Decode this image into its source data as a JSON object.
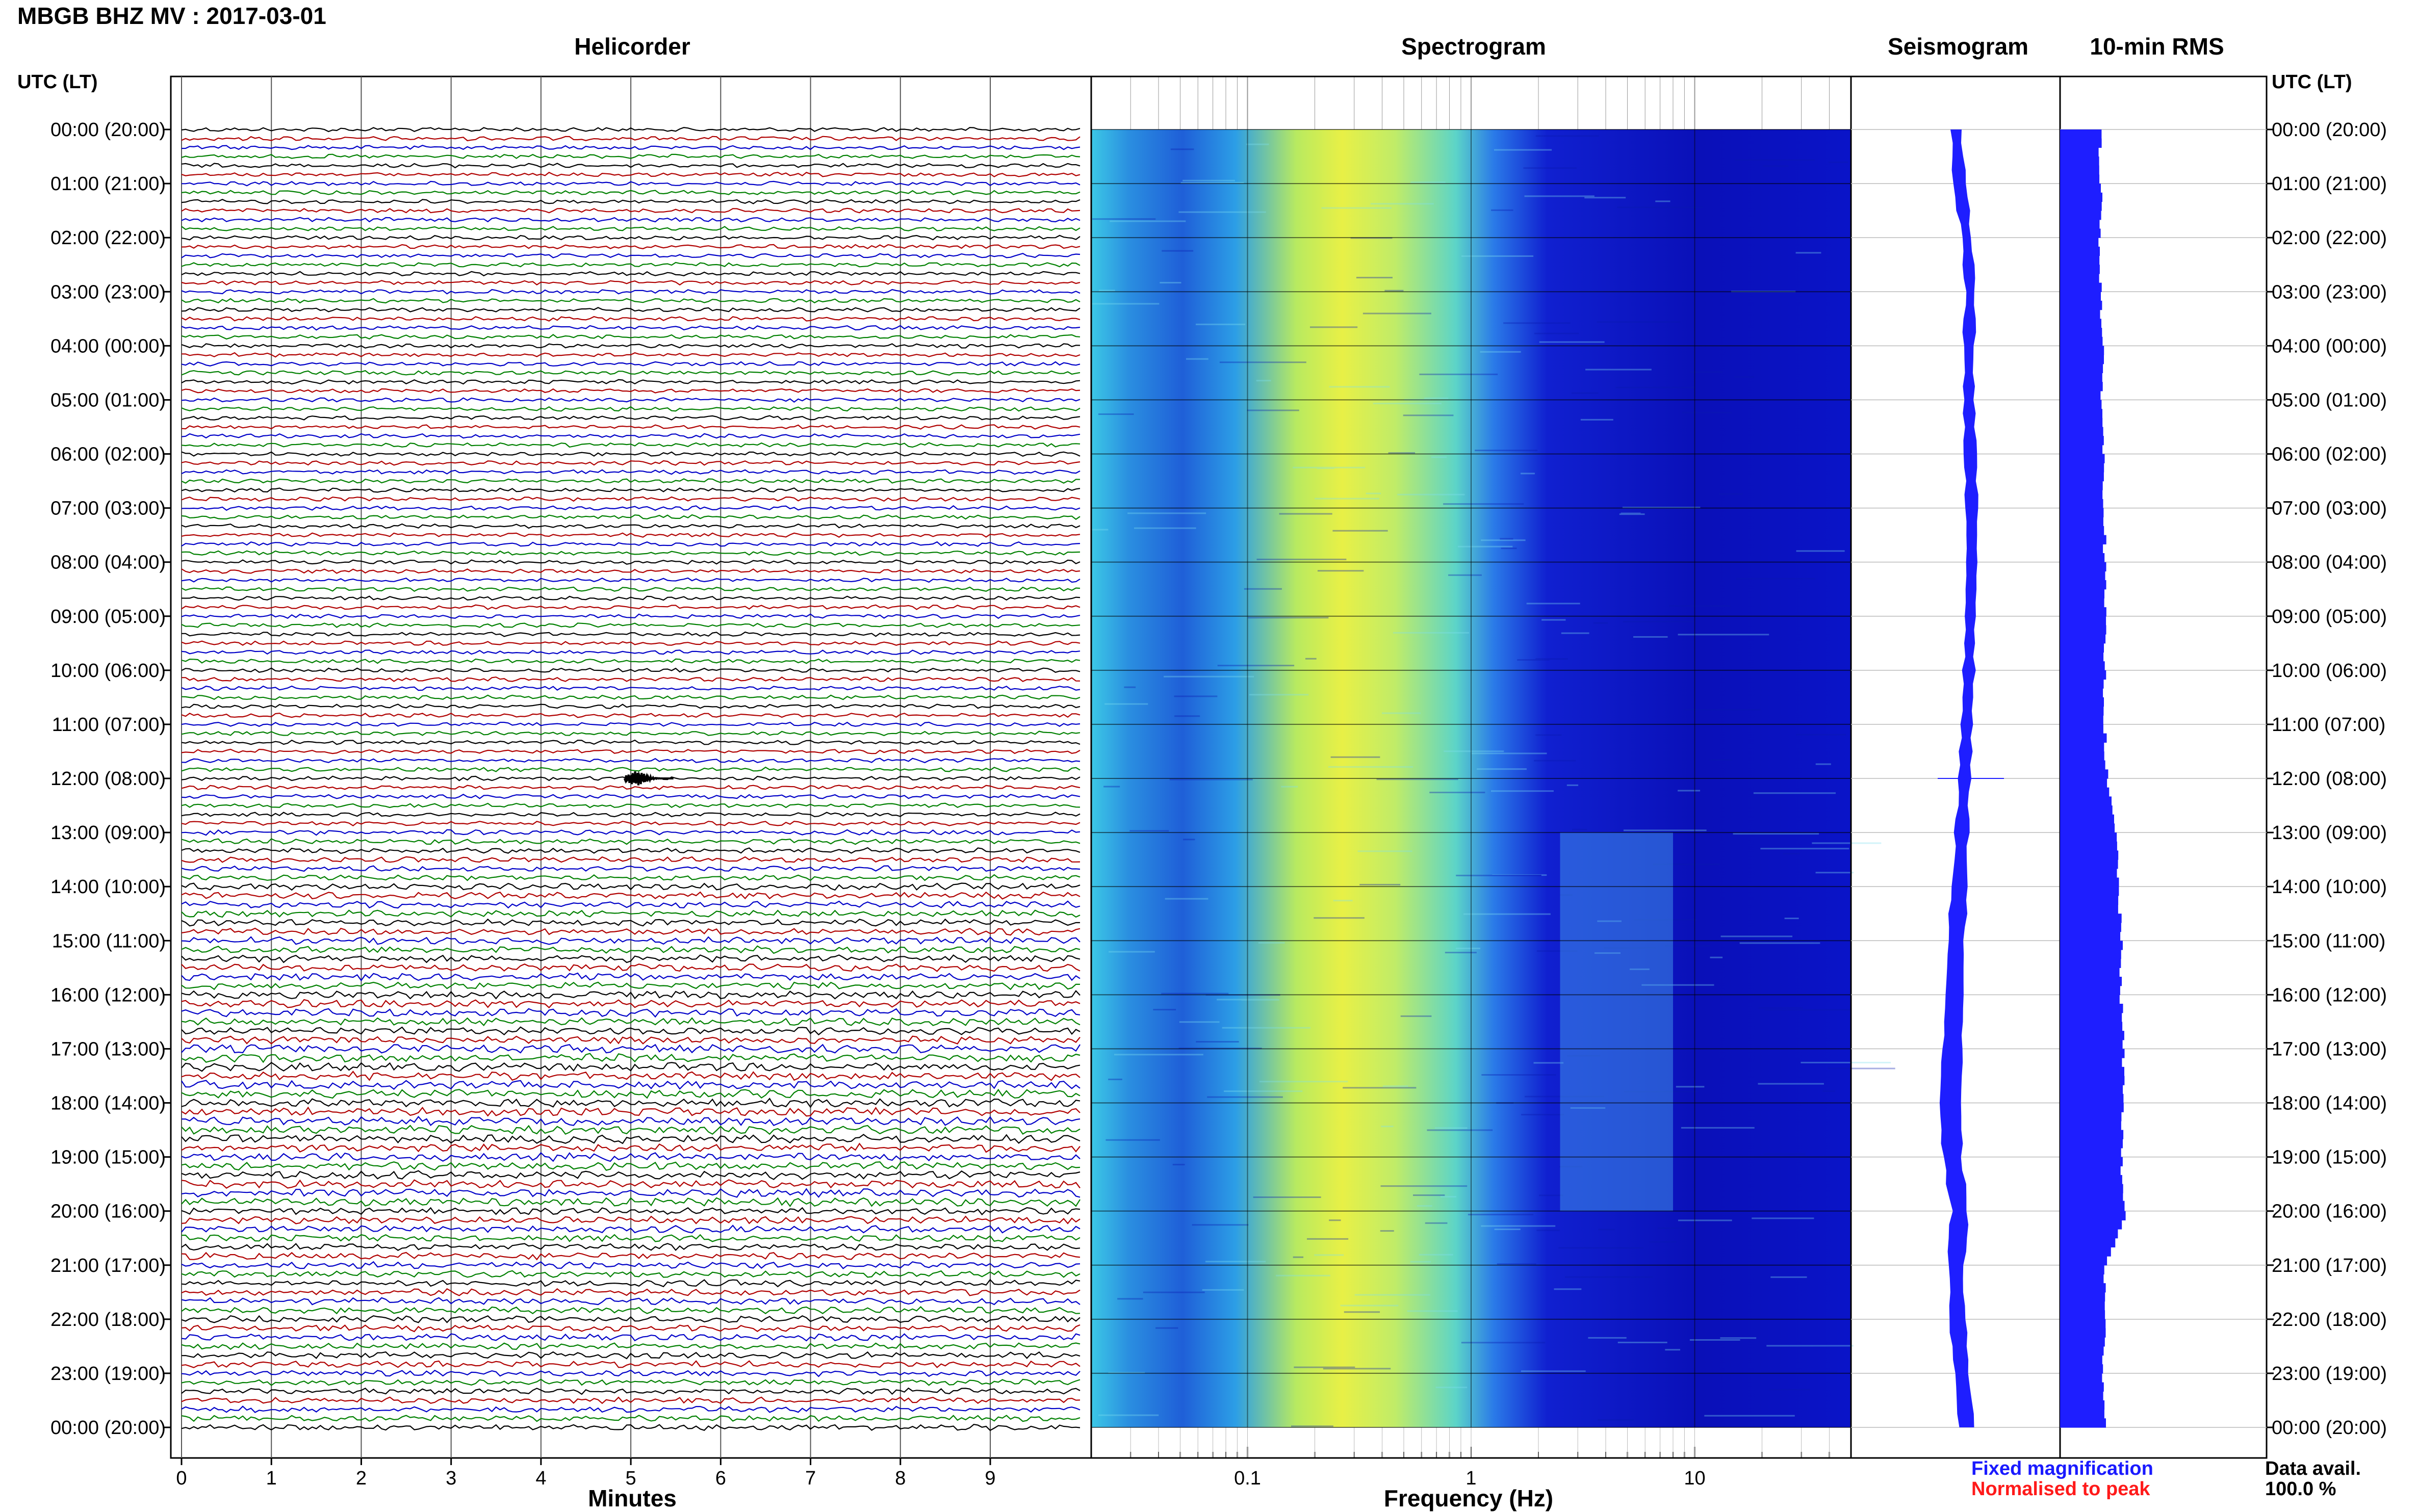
{
  "header": {
    "title": "MBGB BHZ MV : 2017-03-01",
    "utc_label": "UTC (LT)"
  },
  "panels": {
    "helicorder": "Helicorder",
    "spectrogram": "Spectrogram",
    "seismogram": "Seismogram",
    "rms": "10-min RMS"
  },
  "footer": {
    "minutes_label": "Minutes",
    "frequency_label": "Frequency (Hz)",
    "fixed_magnification": "Fixed magnification",
    "normalised_to_peak": "Normalised to peak",
    "data_avail_label": "Data avail.",
    "data_avail_value": "100.0 %"
  },
  "colors": {
    "trace_cycle": [
      "#000000",
      "#b00000",
      "#0000c8",
      "#008000"
    ],
    "seismogram": "#1e1eff",
    "rms": "#1e1eff",
    "fixed_magnification": "#1a1aff",
    "normalised_to_peak": "#ff1a1a"
  },
  "chart_data": [
    {
      "type": "line",
      "name": "helicorder",
      "xlabel": "Minutes",
      "xticks": [
        "0",
        "1",
        "2",
        "3",
        "4",
        "5",
        "6",
        "7",
        "8",
        "9"
      ],
      "xlim": [
        0,
        10
      ],
      "rows_per_hour": 6,
      "hour_labels": [
        "00:00 (20:00)",
        "01:00 (21:00)",
        "02:00 (22:00)",
        "03:00 (23:00)",
        "04:00 (00:00)",
        "05:00 (01:00)",
        "06:00 (02:00)",
        "07:00 (03:00)",
        "08:00 (04:00)",
        "09:00 (05:00)",
        "10:00 (06:00)",
        "11:00 (07:00)",
        "12:00 (08:00)",
        "13:00 (09:00)",
        "14:00 (10:00)",
        "15:00 (11:00)",
        "16:00 (12:00)",
        "17:00 (13:00)",
        "18:00 (14:00)",
        "19:00 (15:00)",
        "20:00 (16:00)",
        "21:00 (17:00)",
        "22:00 (18:00)",
        "23:00 (19:00)",
        "00:00 (20:00)"
      ],
      "events": [
        {
          "time_utc": "12:00",
          "minute": 5.1
        }
      ]
    },
    {
      "type": "heatmap",
      "name": "spectrogram",
      "xlabel": "Frequency (Hz)",
      "xscale": "log",
      "xlim": [
        0.02,
        50
      ],
      "xticks": [
        "0.1",
        "1",
        "10"
      ],
      "hours": 24
    },
    {
      "type": "line",
      "name": "seismogram",
      "hours": 24,
      "hourly_offset": [
        -0.1,
        -0.05,
        0.05,
        0.1,
        0.08,
        0.08,
        0.1,
        0.12,
        0.12,
        0.1,
        0.08,
        0.05,
        0.02,
        -0.02,
        -0.05,
        -0.1,
        -0.12,
        -0.15,
        -0.18,
        -0.15,
        -0.05,
        -0.1,
        -0.08,
        -0.02,
        0.05
      ],
      "hourly_amplitude": [
        0.35,
        0.35,
        0.35,
        0.35,
        0.35,
        0.35,
        0.35,
        0.35,
        0.35,
        0.35,
        0.35,
        0.35,
        0.35,
        0.45,
        0.55,
        0.6,
        0.65,
        0.7,
        0.72,
        0.7,
        0.6,
        0.55,
        0.55,
        0.5,
        0.5
      ]
    },
    {
      "type": "bar",
      "name": "10-min RMS",
      "hours": 24,
      "hourly_rms": [
        0.34,
        0.35,
        0.34,
        0.35,
        0.36,
        0.36,
        0.37,
        0.38,
        0.38,
        0.38,
        0.38,
        0.38,
        0.4,
        0.48,
        0.5,
        0.52,
        0.52,
        0.54,
        0.54,
        0.52,
        0.55,
        0.38,
        0.38,
        0.37,
        0.39
      ],
      "peak": {
        "time_utc": "20:00",
        "rms": 0.55
      }
    }
  ]
}
